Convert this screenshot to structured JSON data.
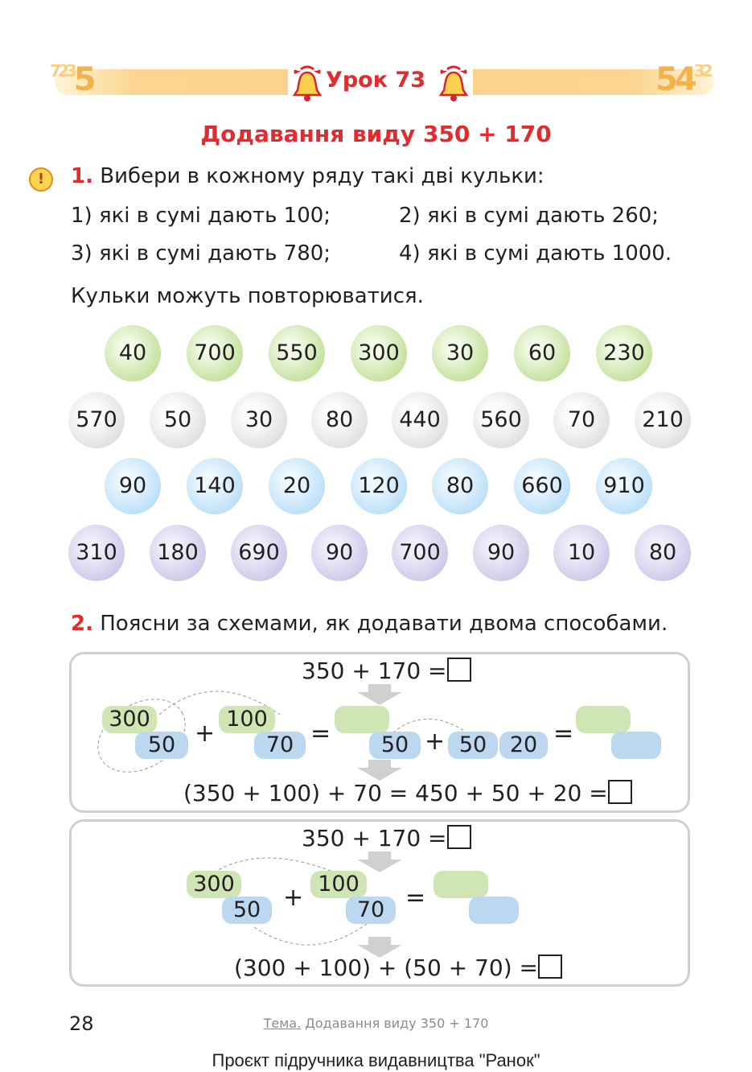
{
  "header": {
    "lesson": "Урок 73",
    "left_digits": "5",
    "left_small_digits": "723",
    "right_digits": "54",
    "right_small_digits": "32"
  },
  "topic": "Додавання виду 350 + 170",
  "task1": {
    "number": "1.",
    "text": "Вибери в кожному ряду такі дві кульки:",
    "items": [
      "1) які в сумі дають 100;",
      "2) які в сумі дають 260;",
      "3) які в сумі дають 780;",
      "4) які в сумі дають 1000."
    ],
    "note": "Кульки можуть повторюватися.",
    "rows": [
      [
        "40",
        "700",
        "550",
        "300",
        "30",
        "60",
        "230"
      ],
      [
        "570",
        "50",
        "30",
        "80",
        "440",
        "560",
        "70",
        "210"
      ],
      [
        "90",
        "140",
        "20",
        "120",
        "80",
        "660",
        "910"
      ],
      [
        "310",
        "180",
        "690",
        "90",
        "700",
        "90",
        "10",
        "80"
      ]
    ]
  },
  "task2": {
    "number": "2.",
    "text": "Поясни за схемами, як додавати двома способами.",
    "scheme1": {
      "top": "350 + 170 =",
      "a_hundreds": "300",
      "a_tens": "50",
      "b_hundreds": "100",
      "b_tens": "70",
      "c_tens1": "50",
      "c_tens2": "50",
      "c_tens3": "20",
      "bottom": "(350 + 100) + 70 = 450 + 50 + 20 ="
    },
    "scheme2": {
      "top": "350 + 170 =",
      "a_hundreds": "300",
      "a_tens": "50",
      "b_hundreds": "100",
      "b_tens": "70",
      "bottom": "(300 + 100) + (50 + 70) ="
    },
    "ops": {
      "plus": "+",
      "equals": "="
    }
  },
  "footer": {
    "page": "28",
    "topic_label": "Тема.",
    "topic_text": "Додавання виду 350 + 170",
    "project": "Проєкт підручника видавництва \"Ранок\""
  }
}
